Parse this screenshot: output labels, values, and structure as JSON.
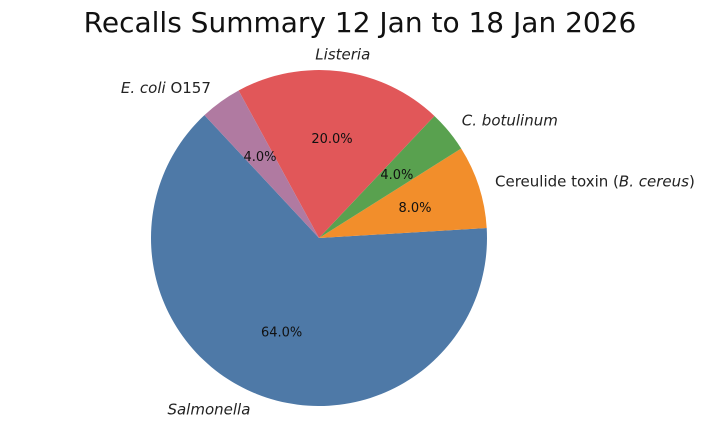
{
  "chart_data": {
    "type": "pie",
    "title": "Recalls Summary 12 Jan to 18 Jan 2026",
    "slices": [
      {
        "label": "Salmonella",
        "value": 64.0,
        "pct_text": "64.0%",
        "color": "#4e79a7"
      },
      {
        "label": "Cereulide toxin (B. cereus)",
        "value": 8.0,
        "pct_text": "8.0%",
        "color": "#f28e2b"
      },
      {
        "label": "C. botulinum",
        "value": 4.0,
        "pct_text": "4.0%",
        "color": "#59a14f"
      },
      {
        "label": "Listeria",
        "value": 20.0,
        "pct_text": "20.0%",
        "color": "#e15759"
      },
      {
        "label": "E. coli O157",
        "value": 4.0,
        "pct_text": "4.0%",
        "color": "#b07aa1"
      }
    ]
  }
}
